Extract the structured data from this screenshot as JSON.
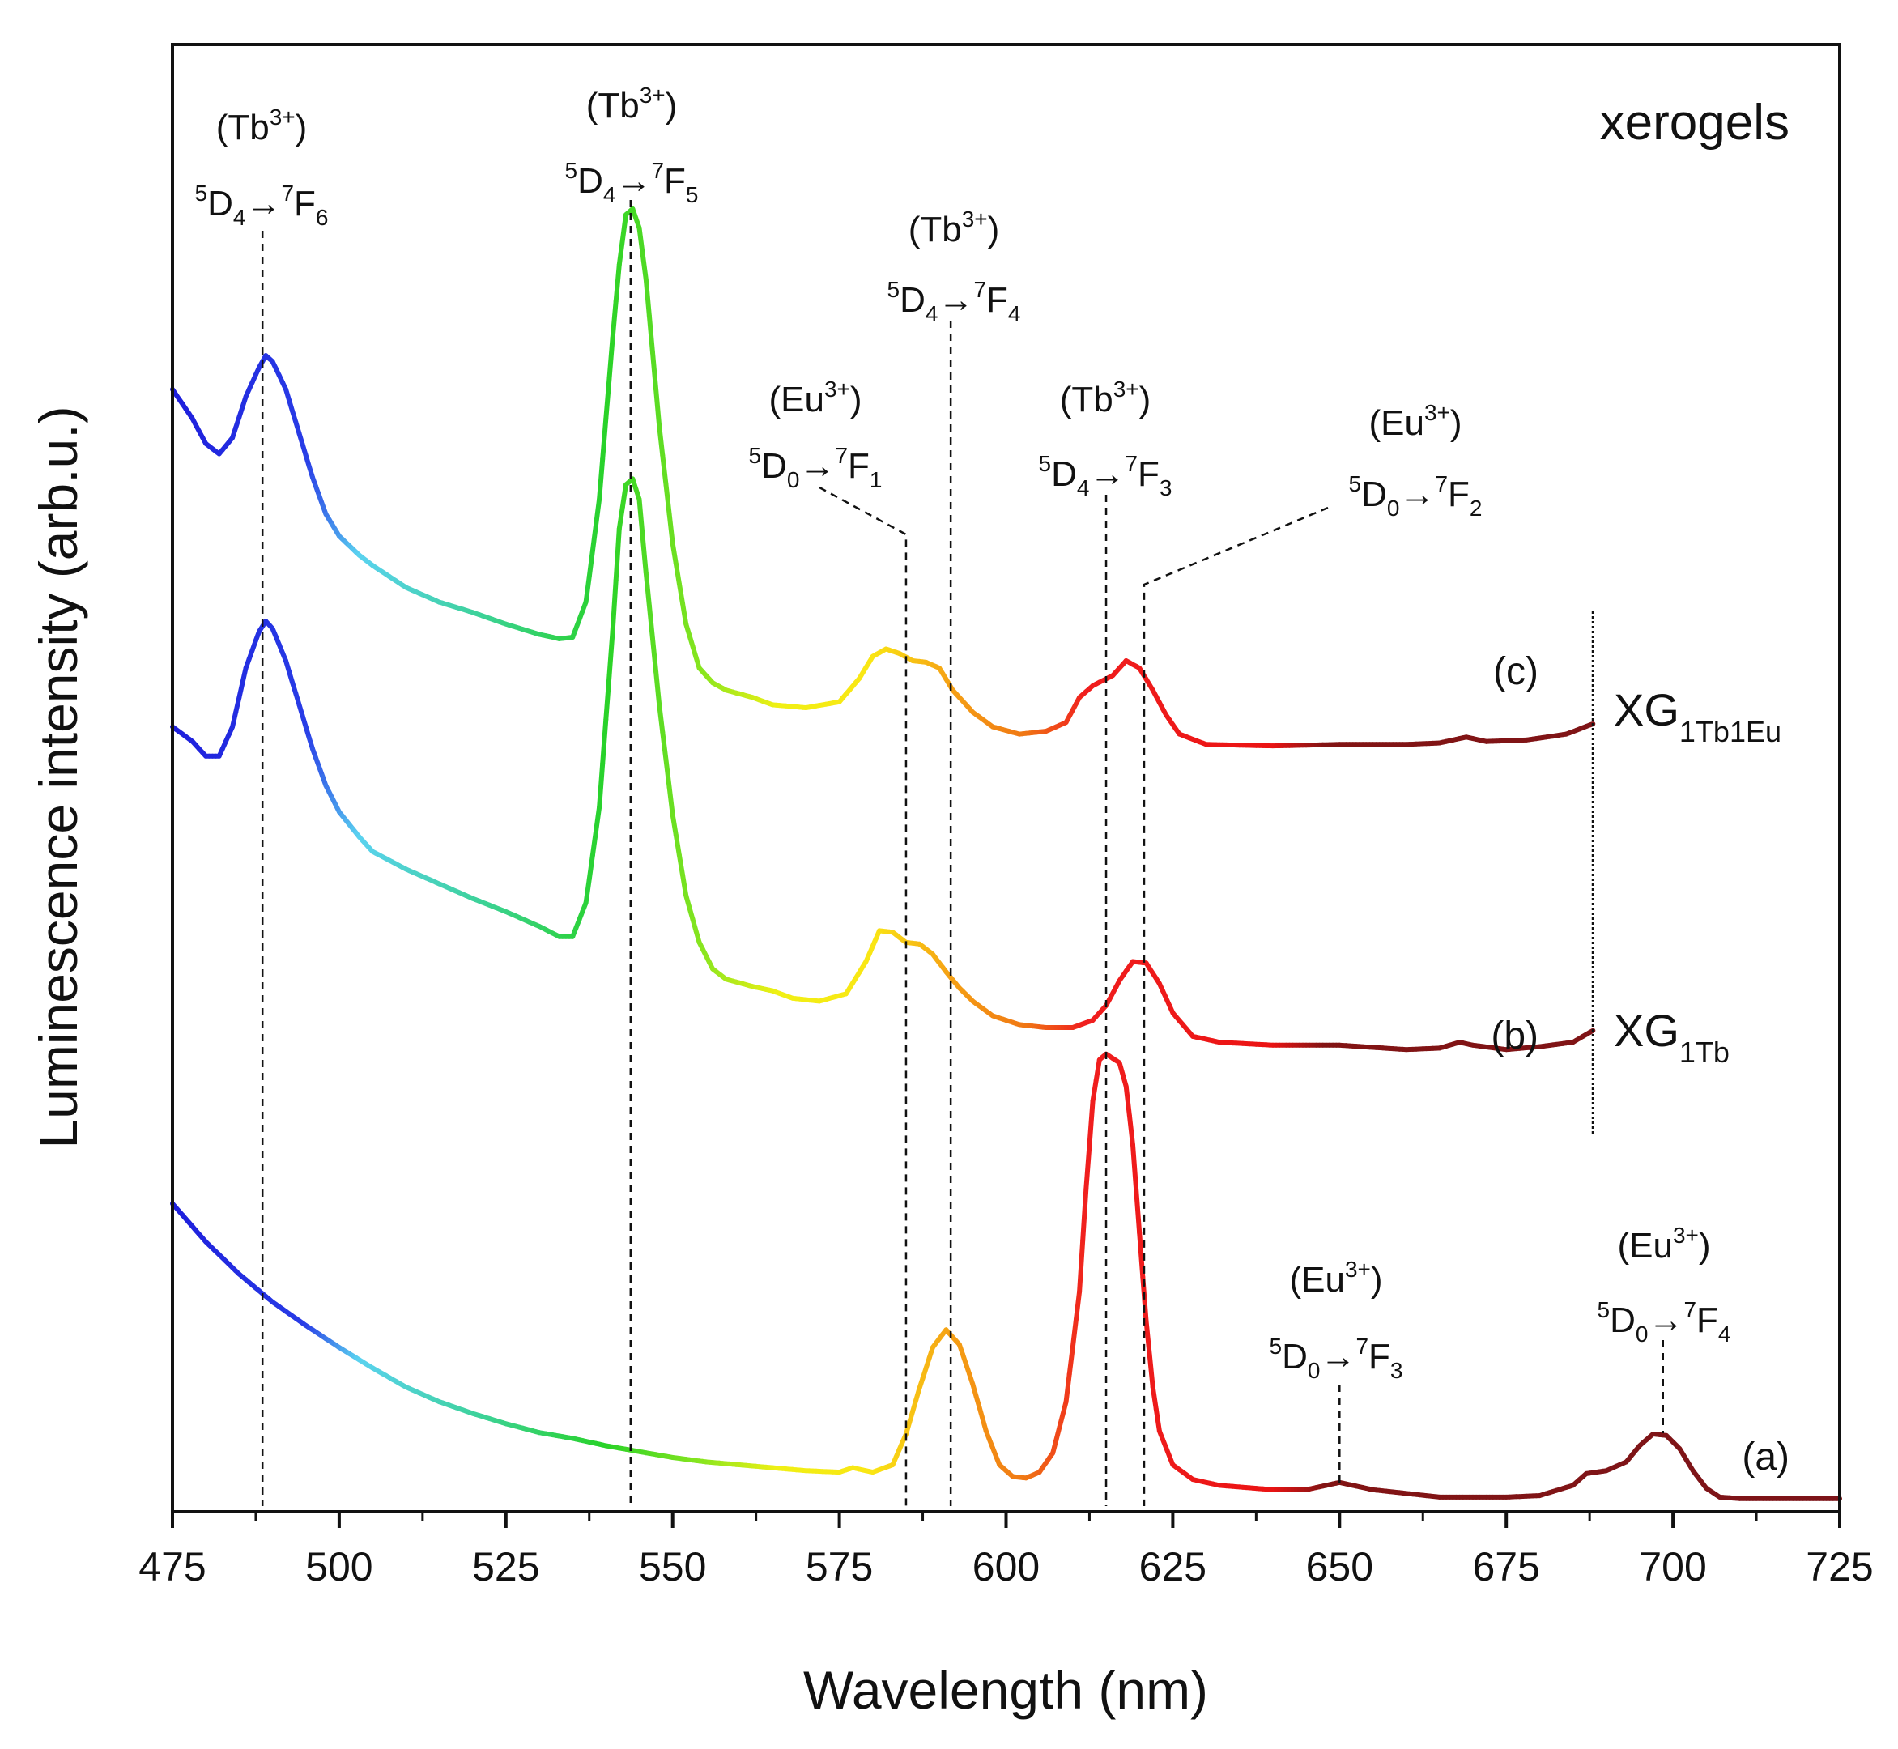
{
  "chart_data": {
    "type": "line",
    "title": "",
    "panel_label": "xerogels",
    "xlabel": "Wavelength (nm)",
    "ylabel": "Luminescence intensity (arb.u.)",
    "xlim": [
      475,
      725
    ],
    "ylim": [
      0,
      100
    ],
    "x_ticks": [
      475,
      500,
      525,
      550,
      575,
      600,
      625,
      650,
      675,
      700,
      725
    ],
    "y_ticks_shown": false,
    "series": [
      {
        "id": "a",
        "tag": "(a)",
        "name": "",
        "points": [
          [
            475,
            21.0
          ],
          [
            480,
            18.4
          ],
          [
            485,
            16.2
          ],
          [
            490,
            14.3
          ],
          [
            495,
            12.7
          ],
          [
            500,
            11.2
          ],
          [
            505,
            9.8
          ],
          [
            510,
            8.5
          ],
          [
            515,
            7.5
          ],
          [
            520,
            6.7
          ],
          [
            525,
            6.0
          ],
          [
            530,
            5.4
          ],
          [
            535,
            5.0
          ],
          [
            540,
            4.5
          ],
          [
            545,
            4.1
          ],
          [
            550,
            3.7
          ],
          [
            555,
            3.4
          ],
          [
            560,
            3.2
          ],
          [
            565,
            3.0
          ],
          [
            570,
            2.8
          ],
          [
            575,
            2.7
          ],
          [
            577,
            3.0
          ],
          [
            578,
            2.9
          ],
          [
            580,
            2.7
          ],
          [
            583,
            3.2
          ],
          [
            585,
            5.3
          ],
          [
            587,
            8.4
          ],
          [
            589,
            11.2
          ],
          [
            591,
            12.4
          ],
          [
            593,
            11.4
          ],
          [
            595,
            8.7
          ],
          [
            597,
            5.5
          ],
          [
            599,
            3.2
          ],
          [
            601,
            2.4
          ],
          [
            603,
            2.3
          ],
          [
            605,
            2.7
          ],
          [
            607,
            4.0
          ],
          [
            609,
            7.5
          ],
          [
            611,
            15.0
          ],
          [
            612,
            22.0
          ],
          [
            613,
            28.0
          ],
          [
            614,
            30.8
          ],
          [
            615,
            31.2
          ],
          [
            617,
            30.6
          ],
          [
            618,
            29.0
          ],
          [
            619,
            25.0
          ],
          [
            620,
            19.0
          ],
          [
            621,
            13.0
          ],
          [
            622,
            8.5
          ],
          [
            623,
            5.5
          ],
          [
            625,
            3.2
          ],
          [
            628,
            2.2
          ],
          [
            632,
            1.8
          ],
          [
            640,
            1.5
          ],
          [
            645,
            1.5
          ],
          [
            648,
            1.8
          ],
          [
            650,
            2.0
          ],
          [
            652,
            1.8
          ],
          [
            655,
            1.5
          ],
          [
            665,
            1.0
          ],
          [
            675,
            1.0
          ],
          [
            680,
            1.1
          ],
          [
            685,
            1.8
          ],
          [
            687,
            2.6
          ],
          [
            690,
            2.8
          ],
          [
            693,
            3.4
          ],
          [
            695,
            4.5
          ],
          [
            697,
            5.3
          ],
          [
            699,
            5.2
          ],
          [
            701,
            4.3
          ],
          [
            703,
            2.8
          ],
          [
            705,
            1.6
          ],
          [
            707,
            1.0
          ],
          [
            710,
            0.9
          ],
          [
            725,
            0.9
          ]
        ]
      },
      {
        "id": "b",
        "tag": "(b)",
        "name": "XG",
        "subscript": "1Tb",
        "points": [
          [
            475,
            53.5
          ],
          [
            478,
            52.5
          ],
          [
            480,
            51.5
          ],
          [
            482,
            51.5
          ],
          [
            484,
            53.5
          ],
          [
            486,
            57.5
          ],
          [
            488,
            60.0
          ],
          [
            489,
            60.7
          ],
          [
            490,
            60.2
          ],
          [
            492,
            58.0
          ],
          [
            494,
            55.0
          ],
          [
            496,
            52.0
          ],
          [
            498,
            49.5
          ],
          [
            500,
            47.7
          ],
          [
            503,
            46.0
          ],
          [
            505,
            45.0
          ],
          [
            510,
            43.8
          ],
          [
            515,
            42.8
          ],
          [
            520,
            41.8
          ],
          [
            525,
            40.9
          ],
          [
            530,
            39.9
          ],
          [
            533,
            39.2
          ],
          [
            535,
            39.2
          ],
          [
            537,
            41.5
          ],
          [
            539,
            48.0
          ],
          [
            541,
            60.0
          ],
          [
            542,
            67.0
          ],
          [
            543,
            70.0
          ],
          [
            544,
            70.4
          ],
          [
            545,
            69.0
          ],
          [
            546,
            64.0
          ],
          [
            548,
            55.0
          ],
          [
            550,
            47.5
          ],
          [
            552,
            42.0
          ],
          [
            554,
            38.8
          ],
          [
            556,
            37.0
          ],
          [
            558,
            36.3
          ],
          [
            562,
            35.8
          ],
          [
            565,
            35.5
          ],
          [
            568,
            35.0
          ],
          [
            572,
            34.8
          ],
          [
            576,
            35.3
          ],
          [
            579,
            37.5
          ],
          [
            581,
            39.6
          ],
          [
            583,
            39.5
          ],
          [
            585,
            38.8
          ],
          [
            587,
            38.7
          ],
          [
            589,
            38.0
          ],
          [
            591,
            36.8
          ],
          [
            593,
            35.7
          ],
          [
            595,
            34.8
          ],
          [
            598,
            33.8
          ],
          [
            602,
            33.2
          ],
          [
            606,
            33.0
          ],
          [
            610,
            33.0
          ],
          [
            613,
            33.5
          ],
          [
            615,
            34.5
          ],
          [
            617,
            36.2
          ],
          [
            619,
            37.5
          ],
          [
            621,
            37.4
          ],
          [
            623,
            36.0
          ],
          [
            625,
            34.0
          ],
          [
            628,
            32.4
          ],
          [
            632,
            32.0
          ],
          [
            640,
            31.8
          ],
          [
            650,
            31.8
          ],
          [
            660,
            31.5
          ],
          [
            665,
            31.6
          ],
          [
            668,
            32.0
          ],
          [
            670,
            31.8
          ],
          [
            675,
            31.5
          ],
          [
            680,
            31.7
          ],
          [
            685,
            32.0
          ],
          [
            688,
            32.8
          ]
        ]
      },
      {
        "id": "c",
        "tag": "(c)",
        "name": "XG",
        "subscript": "1Tb1Eu",
        "points": [
          [
            475,
            76.5
          ],
          [
            478,
            74.5
          ],
          [
            480,
            72.8
          ],
          [
            482,
            72.1
          ],
          [
            484,
            73.2
          ],
          [
            486,
            76.0
          ],
          [
            488,
            78.0
          ],
          [
            489,
            78.8
          ],
          [
            490,
            78.4
          ],
          [
            492,
            76.5
          ],
          [
            494,
            73.5
          ],
          [
            496,
            70.5
          ],
          [
            498,
            68.0
          ],
          [
            500,
            66.5
          ],
          [
            503,
            65.2
          ],
          [
            505,
            64.5
          ],
          [
            510,
            63.0
          ],
          [
            515,
            62.0
          ],
          [
            520,
            61.3
          ],
          [
            525,
            60.5
          ],
          [
            530,
            59.8
          ],
          [
            533,
            59.5
          ],
          [
            535,
            59.6
          ],
          [
            537,
            62.0
          ],
          [
            539,
            69.0
          ],
          [
            541,
            80.0
          ],
          [
            542,
            85.0
          ],
          [
            543,
            88.4
          ],
          [
            544,
            88.8
          ],
          [
            545,
            87.5
          ],
          [
            546,
            84.0
          ],
          [
            548,
            74.0
          ],
          [
            550,
            66.0
          ],
          [
            552,
            60.5
          ],
          [
            554,
            57.5
          ],
          [
            556,
            56.5
          ],
          [
            558,
            56.0
          ],
          [
            562,
            55.5
          ],
          [
            565,
            55.0
          ],
          [
            570,
            54.8
          ],
          [
            575,
            55.2
          ],
          [
            578,
            56.8
          ],
          [
            580,
            58.3
          ],
          [
            582,
            58.8
          ],
          [
            584,
            58.5
          ],
          [
            586,
            58.0
          ],
          [
            588,
            57.9
          ],
          [
            590,
            57.5
          ],
          [
            592,
            56.0
          ],
          [
            595,
            54.5
          ],
          [
            598,
            53.5
          ],
          [
            602,
            53.0
          ],
          [
            606,
            53.2
          ],
          [
            609,
            53.8
          ],
          [
            611,
            55.5
          ],
          [
            613,
            56.3
          ],
          [
            616,
            57.0
          ],
          [
            618,
            58.0
          ],
          [
            620,
            57.5
          ],
          [
            622,
            56.0
          ],
          [
            624,
            54.3
          ],
          [
            626,
            53.0
          ],
          [
            630,
            52.3
          ],
          [
            640,
            52.2
          ],
          [
            650,
            52.3
          ],
          [
            660,
            52.3
          ],
          [
            665,
            52.4
          ],
          [
            669,
            52.8
          ],
          [
            672,
            52.5
          ],
          [
            678,
            52.6
          ],
          [
            684,
            53.0
          ],
          [
            688,
            53.7
          ]
        ]
      }
    ],
    "annotations": [
      {
        "ion": "(Tb",
        "ion_sup": "3+",
        "ion_close": ")",
        "transition": [
          {
            "t": "5",
            "k": "sup"
          },
          {
            "t": "D",
            "k": "n"
          },
          {
            "t": "4",
            "k": "sub"
          },
          {
            "t": "→",
            "k": "n"
          },
          {
            "t": "7",
            "k": "sup"
          },
          {
            "t": "F",
            "k": "n"
          },
          {
            "t": "6",
            "k": "sub"
          }
        ],
        "x": 488.5
      },
      {
        "ion": "(Tb",
        "ion_sup": "3+",
        "ion_close": ")",
        "transition": [
          {
            "t": "5",
            "k": "sup"
          },
          {
            "t": "D",
            "k": "n"
          },
          {
            "t": "4",
            "k": "sub"
          },
          {
            "t": "→",
            "k": "n"
          },
          {
            "t": "7",
            "k": "sup"
          },
          {
            "t": "F",
            "k": "n"
          },
          {
            "t": "5",
            "k": "sub"
          }
        ],
        "x": 543.7
      },
      {
        "ion": "(Tb",
        "ion_sup": "3+",
        "ion_close": ")",
        "transition": [
          {
            "t": "5",
            "k": "sup"
          },
          {
            "t": "D",
            "k": "n"
          },
          {
            "t": "4",
            "k": "sub"
          },
          {
            "t": "→",
            "k": "n"
          },
          {
            "t": "7",
            "k": "sup"
          },
          {
            "t": "F",
            "k": "n"
          },
          {
            "t": "4",
            "k": "sub"
          }
        ],
        "x": 591.7
      },
      {
        "ion": "(Eu",
        "ion_sup": "3+",
        "ion_close": ")",
        "transition": [
          {
            "t": "5",
            "k": "sup"
          },
          {
            "t": "D",
            "k": "n"
          },
          {
            "t": "0",
            "k": "sub"
          },
          {
            "t": "→",
            "k": "n"
          },
          {
            "t": "7",
            "k": "sup"
          },
          {
            "t": "F",
            "k": "n"
          },
          {
            "t": "1",
            "k": "sub"
          }
        ],
        "x": 585.0
      },
      {
        "ion": "(Tb",
        "ion_sup": "3+",
        "ion_close": ")",
        "transition": [
          {
            "t": "5",
            "k": "sup"
          },
          {
            "t": "D",
            "k": "n"
          },
          {
            "t": "4",
            "k": "sub"
          },
          {
            "t": "→",
            "k": "n"
          },
          {
            "t": "7",
            "k": "sup"
          },
          {
            "t": "F",
            "k": "n"
          },
          {
            "t": "3",
            "k": "sub"
          }
        ],
        "x": 615.0
      },
      {
        "ion": "(Eu",
        "ion_sup": "3+",
        "ion_close": ")",
        "transition": [
          {
            "t": "5",
            "k": "sup"
          },
          {
            "t": "D",
            "k": "n"
          },
          {
            "t": "0",
            "k": "sub"
          },
          {
            "t": "→",
            "k": "n"
          },
          {
            "t": "7",
            "k": "sup"
          },
          {
            "t": "F",
            "k": "n"
          },
          {
            "t": "2",
            "k": "sub"
          }
        ],
        "x": 620.7
      },
      {
        "ion": "(Eu",
        "ion_sup": "3+",
        "ion_close": ")",
        "transition": [
          {
            "t": "5",
            "k": "sup"
          },
          {
            "t": "D",
            "k": "n"
          },
          {
            "t": "0",
            "k": "sub"
          },
          {
            "t": "→",
            "k": "n"
          },
          {
            "t": "7",
            "k": "sup"
          },
          {
            "t": "F",
            "k": "n"
          },
          {
            "t": "3",
            "k": "sub"
          }
        ],
        "x": 650.0
      },
      {
        "ion": "(Eu",
        "ion_sup": "3+",
        "ion_close": ")",
        "transition": [
          {
            "t": "5",
            "k": "sup"
          },
          {
            "t": "D",
            "k": "n"
          },
          {
            "t": "0",
            "k": "sub"
          },
          {
            "t": "→",
            "k": "n"
          },
          {
            "t": "7",
            "k": "sup"
          },
          {
            "t": "F",
            "k": "n"
          },
          {
            "t": "4",
            "k": "sub"
          }
        ],
        "x": 698.5
      }
    ],
    "separator_x": 688,
    "line_style": "spectral color gradient by wavelength"
  }
}
